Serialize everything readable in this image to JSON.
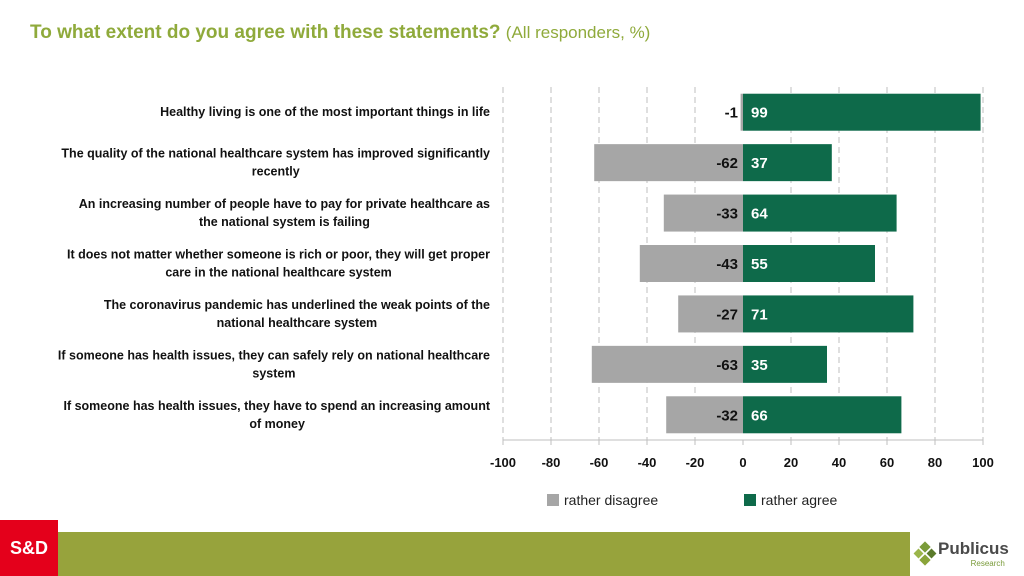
{
  "header": {
    "title": "To what extent do you agree with these statements?",
    "subtitle": "(All responders, %)"
  },
  "colors": {
    "disagree": "#a6a6a6",
    "agree": "#0e6a4a",
    "title": "#8faa3b",
    "footer_green": "#97a33c",
    "footer_red": "#e4001b"
  },
  "chart_data": {
    "type": "bar",
    "orientation": "horizontal-diverging",
    "categories": [
      [
        "Healthy living is one of the most important things in life"
      ],
      [
        "The quality of the national healthcare system has improved significantly",
        "recently"
      ],
      [
        "An increasing number of people have to pay for private healthcare as",
        "the national system is failing"
      ],
      [
        "It does not matter whether someone is rich or poor, they will get proper",
        "care in the national healthcare system"
      ],
      [
        "The coronavirus pandemic has underlined the weak points of the",
        "national healthcare system"
      ],
      [
        "If someone has health issues, they can safely rely on national healthcare",
        "system"
      ],
      [
        "If someone has health issues, they have to spend an increasing amount",
        "of money"
      ]
    ],
    "series": [
      {
        "name": "rather disagree",
        "values": [
          -1,
          -62,
          -33,
          -43,
          -27,
          -63,
          -32
        ]
      },
      {
        "name": "rather agree",
        "values": [
          99,
          37,
          64,
          55,
          71,
          35,
          66
        ]
      }
    ],
    "xlim": [
      -100,
      100
    ],
    "xticks": [
      -100,
      -80,
      -60,
      -40,
      -20,
      0,
      20,
      40,
      60,
      80,
      100
    ],
    "grid": "vertical dashed",
    "legend": "bottom-center"
  },
  "footer": {
    "party_logo": "S&D",
    "brand": "Publicus",
    "brand_sub": "Research"
  }
}
